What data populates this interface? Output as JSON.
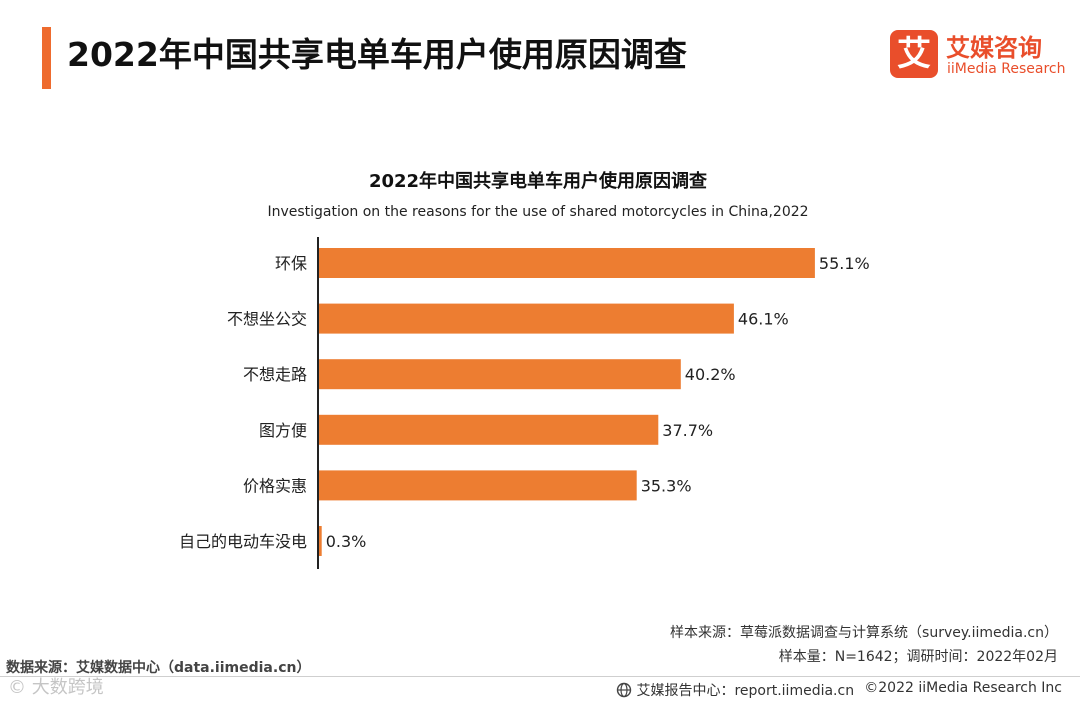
{
  "header": {
    "title": "2022年中国共享电单车用户使用原因调查",
    "logo_mark": "艾",
    "logo_cn": "艾媒咨询",
    "logo_en": "iiMedia Research"
  },
  "chart_data": {
    "type": "bar",
    "orientation": "horizontal",
    "title": "2022年中国共享电单车用户使用原因调查",
    "subtitle": "Investigation on the reasons for the use of shared motorcycles in China,2022",
    "categories": [
      "环保",
      "不想坐公交",
      "不想走路",
      "图方便",
      "价格实惠",
      "自己的电动车没电"
    ],
    "values": [
      55.1,
      46.1,
      40.2,
      37.7,
      35.3,
      0.3
    ],
    "unit": "%",
    "xlim": [
      0,
      60
    ],
    "bar_color": "#ed7d31",
    "grid": false
  },
  "notes": {
    "sample_source": "样本来源：草莓派数据调查与计算系统（survey.iimedia.cn）",
    "sample_size": "样本量：N=1642；调研时间：2022年02月",
    "data_source": "数据来源：艾媒数据中心（data.iimedia.cn）"
  },
  "footer": {
    "report_center": "艾媒报告中心：report.iimedia.cn",
    "copyright": "©2022  iiMedia Research  Inc",
    "globe_icon": "globe-icon",
    "watermark": "©  大数跨境"
  },
  "colors": {
    "accent": "#ee6b2e",
    "brand": "#e94e2b",
    "bar": "#ed7d31"
  }
}
